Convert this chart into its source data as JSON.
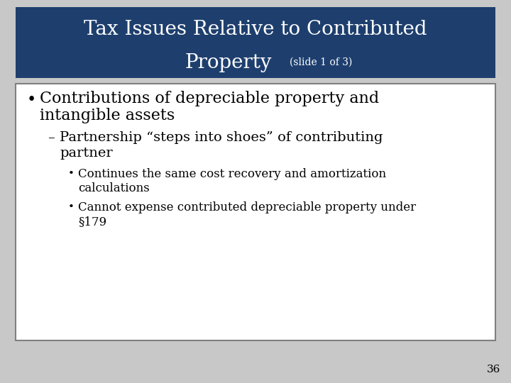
{
  "title_line1": "Tax Issues Relative to Contributed",
  "title_line2": "Property",
  "title_subtitle": "(slide 1 of 3)",
  "title_bg_color": "#1E3F6E",
  "title_text_color": "#FFFFFF",
  "body_bg_color": "#FFFFFF",
  "body_border_color": "#808080",
  "slide_bg_color": "#C8C8C8",
  "bullet1_line1": "Contributions of depreciable property and",
  "bullet1_line2": "intangible assets",
  "sub_bullet_line1": "– Partnership “steps into shoes” of contributing",
  "sub_bullet_line2": "  partner",
  "ss_bullet1_line1": "Continues the same cost recovery and amortization",
  "ss_bullet1_line2": "calculations",
  "ss_bullet2_line1": "Cannot expense contributed depreciable property under",
  "ss_bullet2_line2": "§179",
  "page_number": "36",
  "font_color": "#000000"
}
